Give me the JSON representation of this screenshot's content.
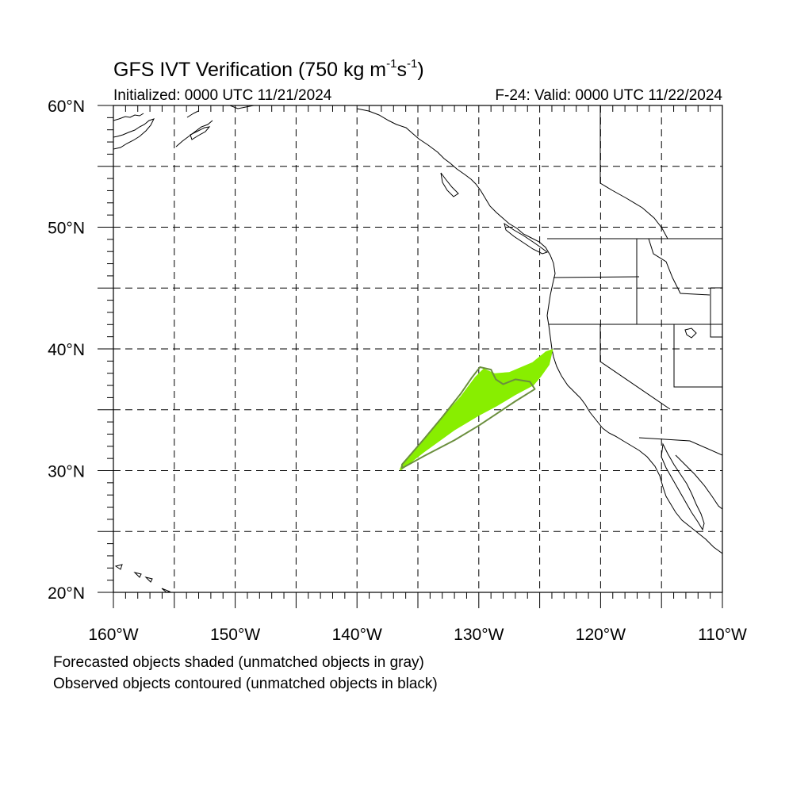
{
  "title": {
    "prefix": "GFS IVT Verification (750 kg m",
    "exp1": "-1",
    "mid": "s",
    "exp2": "-1",
    "suffix": ")"
  },
  "subtitle_left": "Initialized: 0000 UTC 11/21/2024",
  "subtitle_right": "F-24: Valid: 0000 UTC 11/22/2024",
  "lat_labels": [
    {
      "lat": 60,
      "text": "60°N"
    },
    {
      "lat": 50,
      "text": "50°N"
    },
    {
      "lat": 40,
      "text": "40°N"
    },
    {
      "lat": 30,
      "text": "30°N"
    },
    {
      "lat": 20,
      "text": "20°N"
    }
  ],
  "lon_labels": [
    {
      "lon": -160,
      "text": "160°W"
    },
    {
      "lon": -150,
      "text": "150°W"
    },
    {
      "lon": -140,
      "text": "140°W"
    },
    {
      "lon": -130,
      "text": "130°W"
    },
    {
      "lon": -120,
      "text": "120°W"
    },
    {
      "lon": -110,
      "text": "110°W"
    }
  ],
  "extent": {
    "lon_min": -160,
    "lon_max": -110,
    "lat_min": 20,
    "lat_max": 60
  },
  "grid_lons": [
    -155,
    -150,
    -145,
    -140,
    -135,
    -130,
    -125,
    -120,
    -115
  ],
  "grid_lats": [
    25,
    30,
    35,
    40,
    45,
    50,
    55
  ],
  "forecast_object": {
    "color": "#88ee00",
    "polygon": [
      [
        -136.4,
        30.0
      ],
      [
        -134.5,
        31.5
      ],
      [
        -132,
        33.3
      ],
      [
        -130,
        34.5
      ],
      [
        -128.5,
        35.3
      ],
      [
        -127,
        36.2
      ],
      [
        -125.5,
        37.0
      ],
      [
        -124.9,
        37.7
      ],
      [
        -124.2,
        38.7
      ],
      [
        -123.9,
        40.0
      ],
      [
        -124.5,
        39.8
      ],
      [
        -125.6,
        38.9
      ],
      [
        -127.5,
        38.1
      ],
      [
        -128.7,
        38.0
      ],
      [
        -129.6,
        38.4
      ],
      [
        -130.3,
        37.7
      ],
      [
        -131.5,
        36.1
      ],
      [
        -133,
        34.4
      ],
      [
        -134.5,
        32.6
      ],
      [
        -136.3,
        30.6
      ],
      [
        -136.5,
        30.1
      ]
    ]
  },
  "observed_object": {
    "color": "#6b8f3e",
    "polygon": [
      [
        -136.3,
        30.2
      ],
      [
        -134.5,
        31.2
      ],
      [
        -132,
        32.5
      ],
      [
        -130,
        33.7
      ],
      [
        -128.5,
        34.7
      ],
      [
        -127,
        35.7
      ],
      [
        -125.4,
        36.7
      ],
      [
        -125.8,
        37.3
      ],
      [
        -127,
        37.5
      ],
      [
        -128,
        37.1
      ],
      [
        -128.6,
        37.5
      ],
      [
        -129.0,
        38.3
      ],
      [
        -129.9,
        38.5
      ],
      [
        -130.6,
        37.6
      ],
      [
        -131.5,
        36.3
      ],
      [
        -133,
        34.4
      ],
      [
        -134.5,
        32.6
      ],
      [
        -136.3,
        30.5
      ]
    ]
  },
  "footer_line1": "Forecasted objects shaded (unmatched objects in gray)",
  "footer_line2": "Observed objects contoured (unmatched objects in black)"
}
